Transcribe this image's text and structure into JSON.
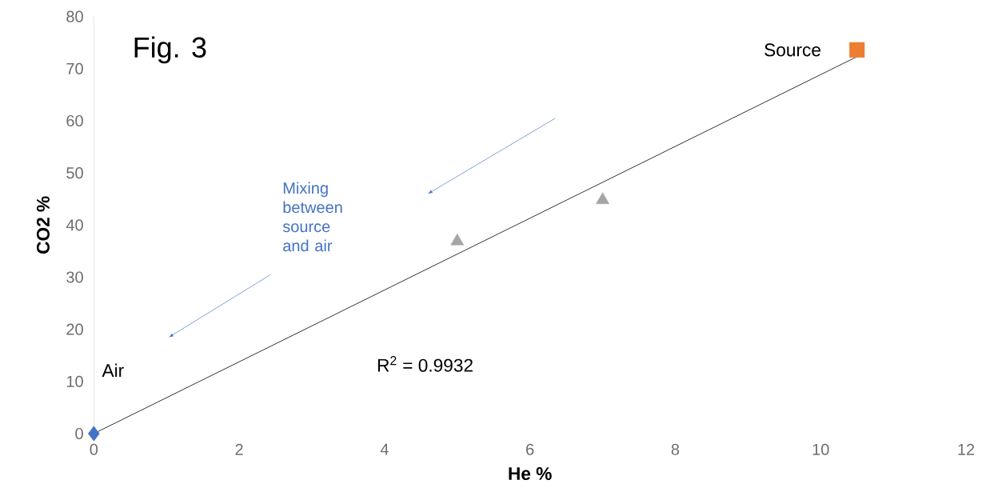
{
  "chart_data": {
    "type": "scatter",
    "xlabel": "He %",
    "ylabel": "CO2 %",
    "series": [
      {
        "marker": "diamond",
        "color": "#4472c4",
        "x": [
          0
        ],
        "values": [
          0
        ]
      },
      {
        "marker": "square",
        "color": "#ed7d31",
        "x": [
          10.5
        ],
        "values": [
          73.6
        ]
      },
      {
        "marker": "triangle",
        "color": "#a5a5a5",
        "x": [
          5.0,
          7.0
        ],
        "values": [
          36.9,
          44.8
        ]
      },
      {
        "type": "line",
        "color": "#000000",
        "x": [
          0,
          10.5
        ],
        "values": [
          0,
          72.3
        ]
      }
    ],
    "xlim": [
      0,
      12
    ],
    "ylim": [
      0,
      80
    ],
    "xticks": [
      0,
      2,
      4,
      6,
      8,
      10,
      12
    ],
    "yticks": [
      0,
      10,
      20,
      30,
      40,
      50,
      60,
      70,
      80
    ],
    "grid": false,
    "annotations": [
      "Fig. 3",
      {
        "text": "Source",
        "x": 10.5,
        "y": 73.6
      },
      "Air",
      "Mixing between source and air",
      "R$^{2}$ = 0.9932"
    ]
  }
}
